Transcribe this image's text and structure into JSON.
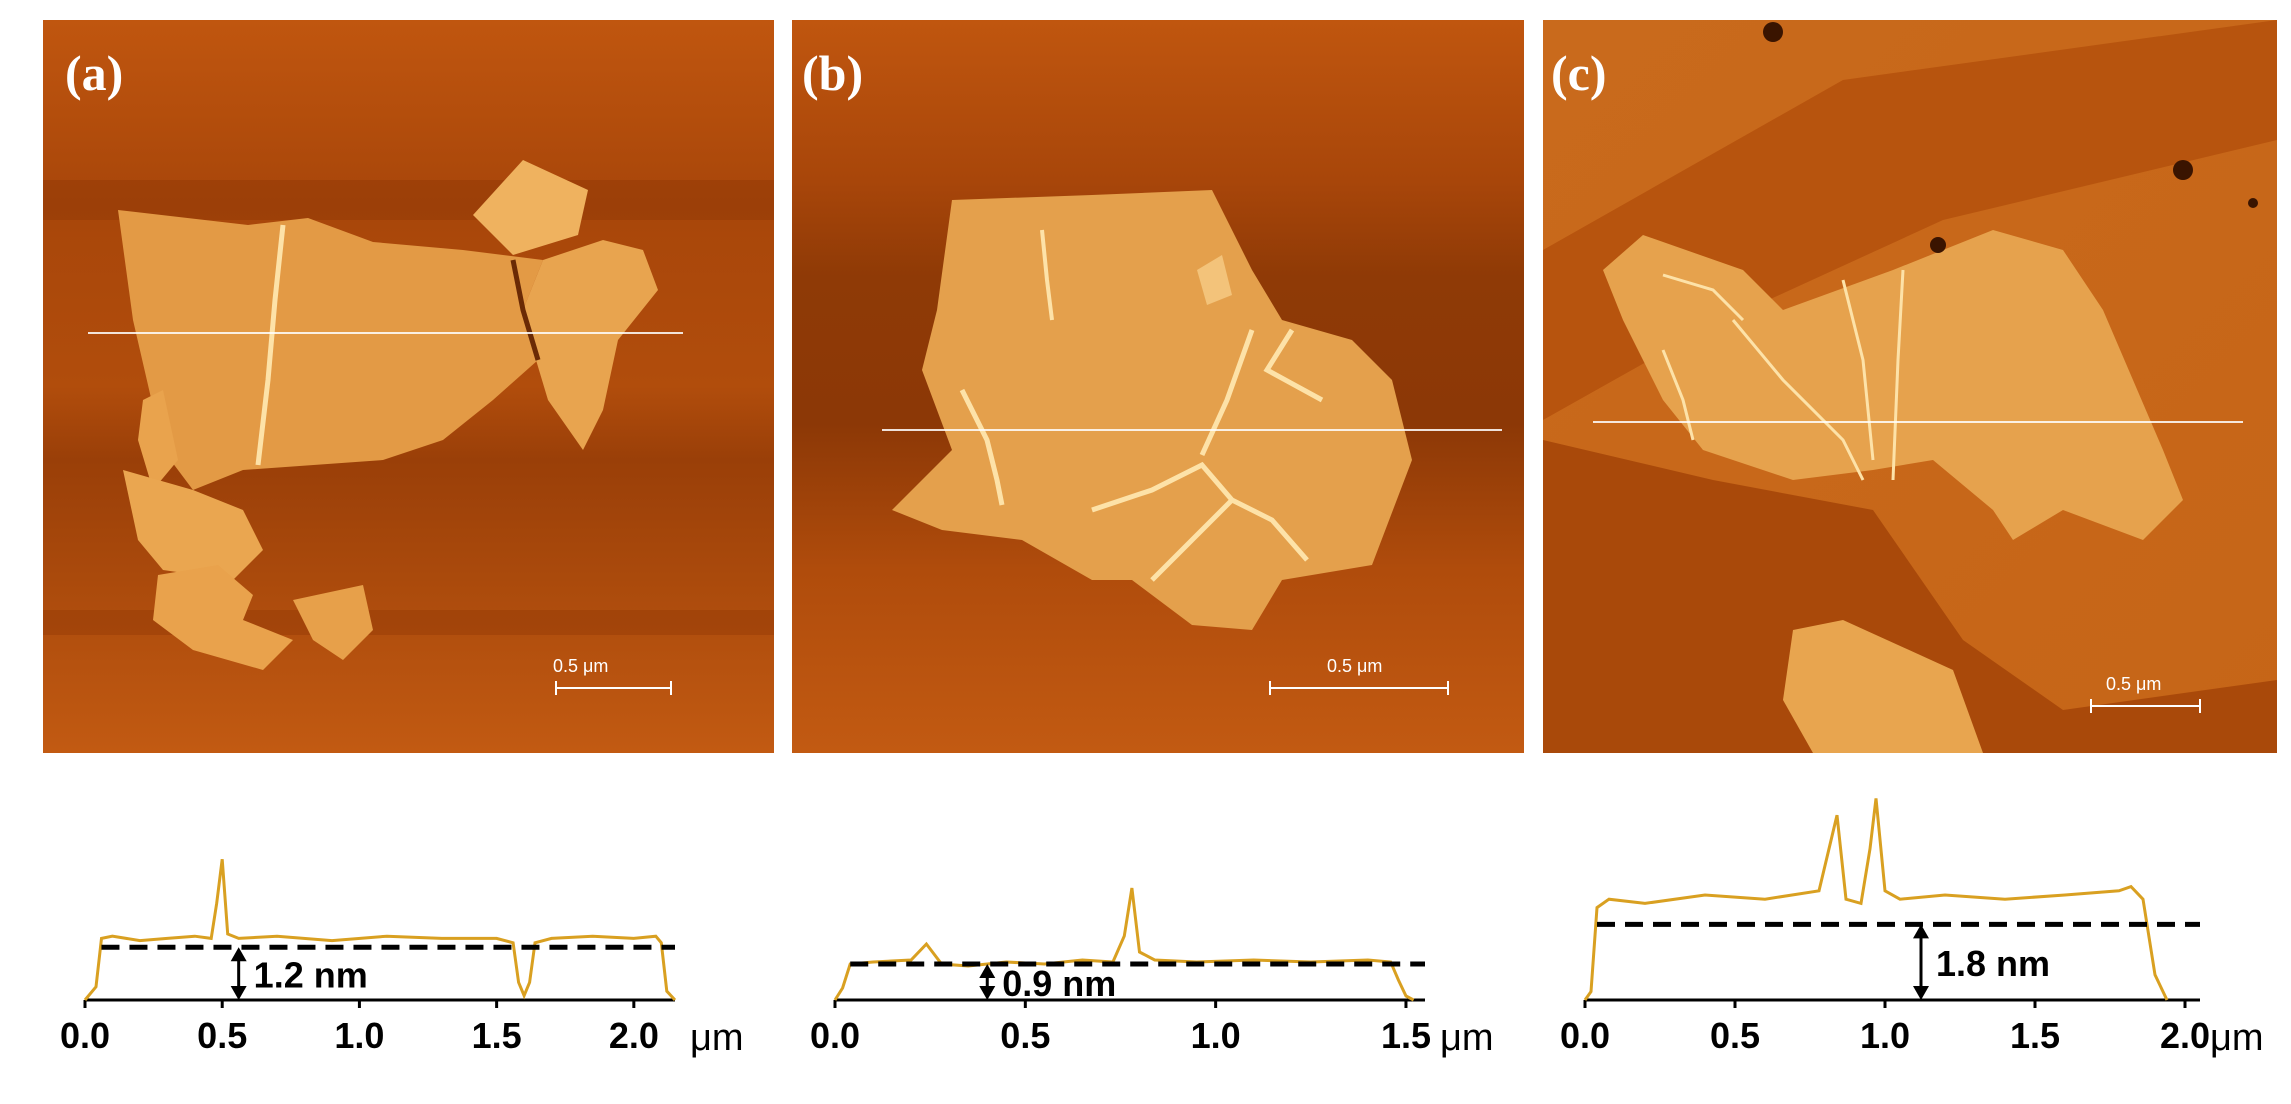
{
  "figure": {
    "panels": [
      {
        "label": "(a)",
        "scale_bar": "0.5 μm",
        "height": "1.2 nm",
        "x_ticks": [
          "0.0",
          "0.5",
          "1.0",
          "1.5",
          "2.0"
        ],
        "unit": "μm"
      },
      {
        "label": "(b)",
        "scale_bar": "0.5 μm",
        "height": "0.9 nm",
        "x_ticks": [
          "0.0",
          "0.5",
          "1.0",
          "1.5"
        ],
        "unit": "μm"
      },
      {
        "label": "(c)",
        "scale_bar": "0.5 μm",
        "height": "1.8 nm",
        "x_ticks": [
          "0.0",
          "0.5",
          "1.0",
          "1.5",
          "2.0"
        ],
        "unit": "μm"
      }
    ],
    "colors": {
      "substrate": "#b94e0c",
      "flake": "#e9a14a",
      "profile_line": "#d9a021",
      "axis": "#000000"
    }
  },
  "chart_data": [
    {
      "type": "line",
      "panel": "(a)",
      "xlabel": "μm",
      "xlim": [
        0,
        2.15
      ],
      "x_ticks": [
        0.0,
        0.5,
        1.0,
        1.5,
        2.0
      ],
      "x": [
        0.0,
        0.04,
        0.06,
        0.1,
        0.2,
        0.3,
        0.4,
        0.46,
        0.48,
        0.5,
        0.52,
        0.56,
        0.7,
        0.9,
        1.1,
        1.3,
        1.5,
        1.56,
        1.58,
        1.6,
        1.62,
        1.64,
        1.7,
        1.85,
        2.0,
        2.08,
        2.1,
        2.12,
        2.15
      ],
      "y": [
        0.0,
        0.3,
        1.4,
        1.45,
        1.35,
        1.4,
        1.45,
        1.4,
        2.2,
        3.2,
        1.5,
        1.4,
        1.45,
        1.35,
        1.45,
        1.4,
        1.4,
        1.3,
        0.4,
        0.1,
        0.4,
        1.3,
        1.4,
        1.45,
        1.4,
        1.45,
        1.3,
        0.2,
        0.0
      ],
      "plateau": 1.2,
      "step_label": "1.2 nm"
    },
    {
      "type": "line",
      "panel": "(b)",
      "xlabel": "μm",
      "xlim": [
        0,
        1.55
      ],
      "x_ticks": [
        0.0,
        0.5,
        1.0,
        1.5
      ],
      "x": [
        0.0,
        0.02,
        0.04,
        0.1,
        0.2,
        0.24,
        0.28,
        0.35,
        0.45,
        0.55,
        0.65,
        0.73,
        0.76,
        0.78,
        0.8,
        0.84,
        0.95,
        1.1,
        1.25,
        1.4,
        1.46,
        1.48,
        1.5,
        1.52
      ],
      "y": [
        0.0,
        0.3,
        0.9,
        0.95,
        1.0,
        1.4,
        0.9,
        0.85,
        0.95,
        0.9,
        1.0,
        0.95,
        1.6,
        2.8,
        1.2,
        1.0,
        0.95,
        1.0,
        0.95,
        1.0,
        0.95,
        0.5,
        0.1,
        0.0
      ],
      "plateau": 0.9,
      "step_label": "0.9 nm"
    },
    {
      "type": "line",
      "panel": "(c)",
      "xlabel": "μm",
      "xlim": [
        0,
        2.05
      ],
      "x_ticks": [
        0.0,
        0.5,
        1.0,
        1.5,
        2.0
      ],
      "x": [
        0.0,
        0.02,
        0.04,
        0.08,
        0.2,
        0.4,
        0.6,
        0.78,
        0.82,
        0.84,
        0.87,
        0.92,
        0.95,
        0.97,
        1.0,
        1.05,
        1.2,
        1.4,
        1.6,
        1.78,
        1.82,
        1.86,
        1.9,
        1.94
      ],
      "y": [
        0.0,
        0.2,
        2.2,
        2.4,
        2.3,
        2.5,
        2.4,
        2.6,
        3.8,
        4.4,
        2.4,
        2.3,
        3.6,
        4.8,
        2.6,
        2.4,
        2.5,
        2.4,
        2.5,
        2.6,
        2.7,
        2.4,
        0.6,
        0.0
      ],
      "plateau": 1.8,
      "step_label": "1.8 nm"
    }
  ]
}
